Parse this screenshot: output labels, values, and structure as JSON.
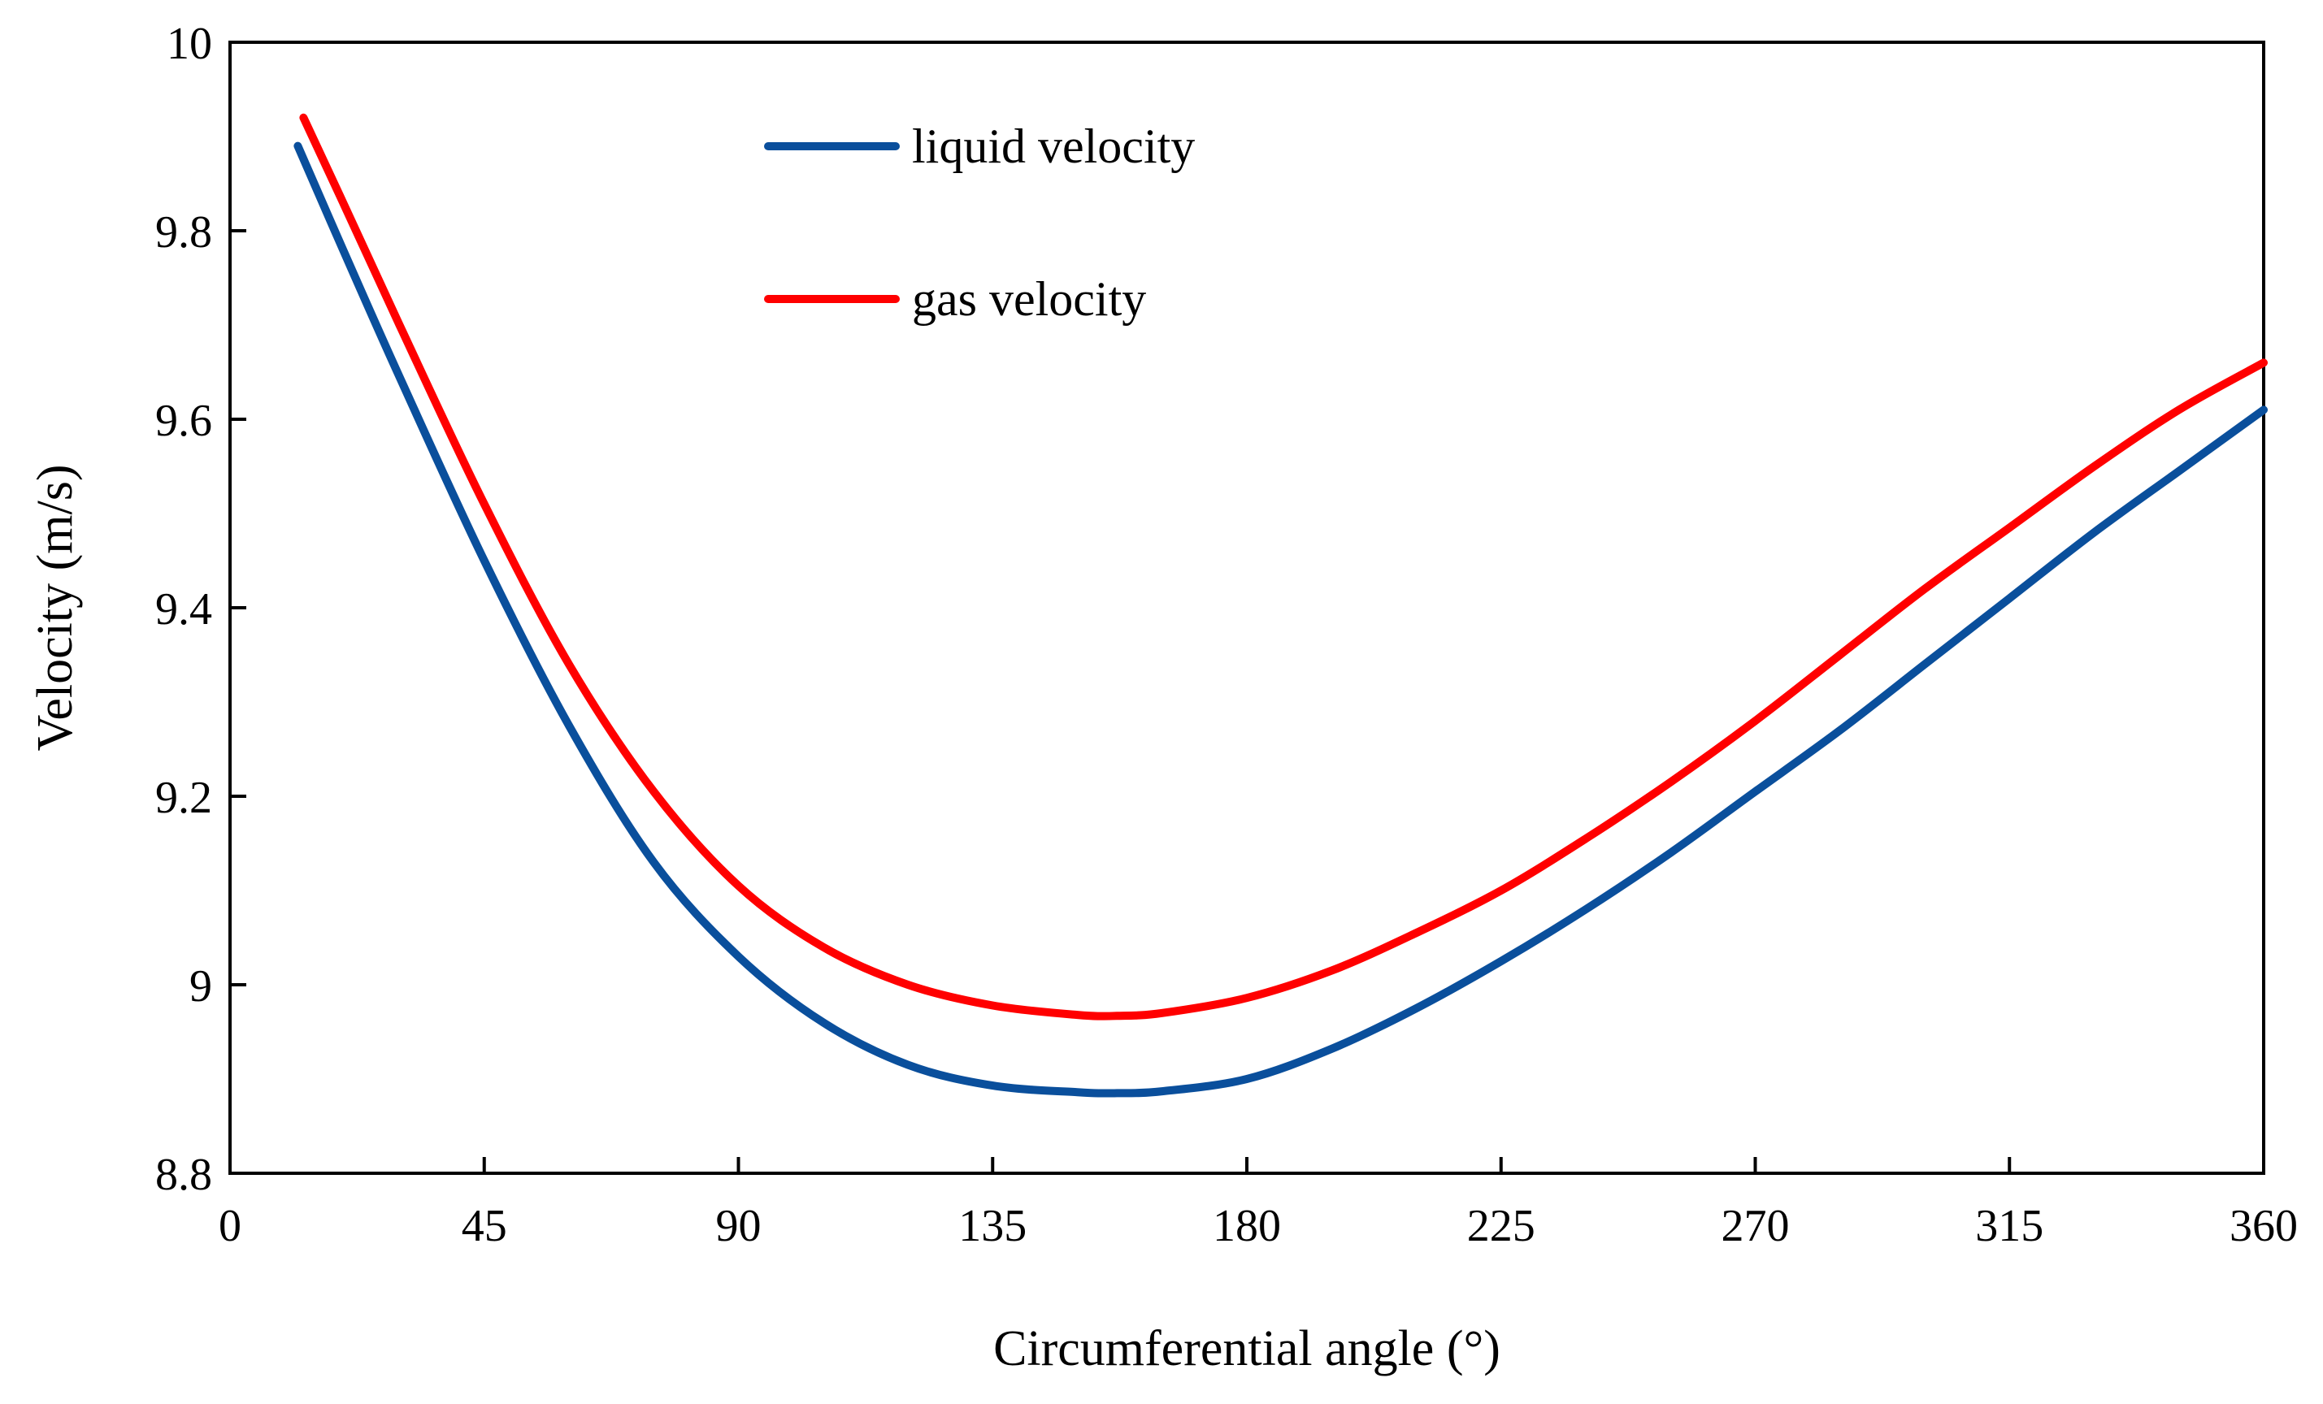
{
  "chart_data": {
    "type": "line",
    "title": "",
    "xlabel": "Circumferential angle (°)",
    "ylabel": "Velocity (m/s)",
    "xlim": [
      0,
      360
    ],
    "ylim": [
      8.8,
      10
    ],
    "xticks": [
      0,
      45,
      90,
      135,
      180,
      225,
      270,
      315,
      360
    ],
    "yticks": [
      8.8,
      9,
      9.2,
      9.4,
      9.6,
      9.8,
      10
    ],
    "xtick_labels": [
      "0",
      "45",
      "90",
      "135",
      "180",
      "225",
      "270",
      "315",
      "360"
    ],
    "ytick_labels": [
      "8.8",
      "9",
      "9.2",
      "9.4",
      "9.6",
      "9.8",
      "10"
    ],
    "grid": false,
    "legend": "top-left",
    "series": [
      {
        "name": "liquid velocity",
        "color": "#0a4f9c",
        "x": [
          12,
          20,
          30,
          45,
          60,
          75,
          90,
          105,
          120,
          135,
          150,
          157,
          165,
          180,
          195,
          210,
          225,
          240,
          255,
          270,
          285,
          300,
          315,
          330,
          345,
          360
        ],
        "y": [
          9.89,
          9.78,
          9.645,
          9.45,
          9.275,
          9.13,
          9.03,
          8.96,
          8.915,
          8.893,
          8.886,
          8.885,
          8.887,
          8.9,
          8.932,
          8.975,
          9.025,
          9.08,
          9.14,
          9.205,
          9.27,
          9.34,
          9.41,
          9.48,
          9.545,
          9.61
        ]
      },
      {
        "name": "gas velocity",
        "color": "#ff0000",
        "x": [
          13,
          20,
          30,
          45,
          60,
          75,
          90,
          105,
          120,
          135,
          150,
          157,
          165,
          180,
          195,
          210,
          225,
          240,
          255,
          270,
          285,
          300,
          315,
          330,
          345,
          360
        ],
        "y": [
          9.92,
          9.83,
          9.7,
          9.51,
          9.34,
          9.205,
          9.105,
          9.04,
          9.0,
          8.978,
          8.968,
          8.967,
          8.97,
          8.986,
          9.015,
          9.055,
          9.1,
          9.155,
          9.215,
          9.28,
          9.35,
          9.42,
          9.485,
          9.55,
          9.61,
          9.66
        ]
      }
    ]
  }
}
